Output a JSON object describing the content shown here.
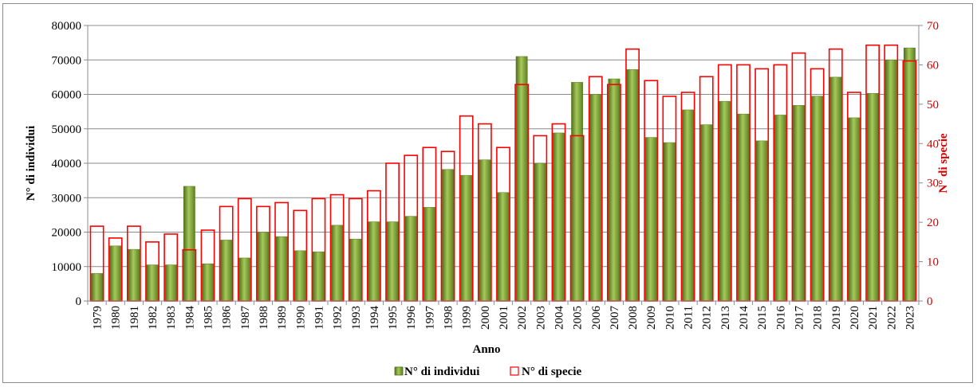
{
  "chart_data": {
    "type": "bar",
    "xlabel": "Anno",
    "ylabel": "N° di individui",
    "y2label": "N° di specie",
    "ylim": [
      0,
      80000
    ],
    "y2lim": [
      0,
      70
    ],
    "yticks": [
      "0",
      "10000",
      "20000",
      "30000",
      "40000",
      "50000",
      "60000",
      "70000",
      "80000"
    ],
    "y2ticks": [
      "0",
      "10",
      "20",
      "30",
      "40",
      "50",
      "60",
      "70"
    ],
    "grid": true,
    "legend_position": "bottom",
    "categories": [
      "1979",
      "1980",
      "1981",
      "1982",
      "1983",
      "1984",
      "1985",
      "1986",
      "1987",
      "1988",
      "1989",
      "1990",
      "1991",
      "1992",
      "1993",
      "1994",
      "1995",
      "1996",
      "1997",
      "1998",
      "1999",
      "2000",
      "2001",
      "2002",
      "2003",
      "2004",
      "2005",
      "2006",
      "2007",
      "2008",
      "2009",
      "2010",
      "2011",
      "2012",
      "2013",
      "2014",
      "2015",
      "2016",
      "2017",
      "2018",
      "2019",
      "2020",
      "2021",
      "2022",
      "2023"
    ],
    "series": [
      {
        "name": "N° di individui",
        "axis": "left",
        "style": "green-filled-bar",
        "color": "#7ea23a",
        "values": [
          8000,
          16000,
          15000,
          10500,
          10500,
          33300,
          10800,
          17700,
          12500,
          20000,
          18700,
          14600,
          14300,
          22000,
          18000,
          23000,
          23000,
          24600,
          27200,
          38200,
          36500,
          41000,
          31500,
          71000,
          40000,
          48800,
          63500,
          60000,
          64500,
          67200,
          47500,
          46000,
          55500,
          51200,
          58000,
          54300,
          46500,
          54000,
          56800,
          59500,
          65000,
          53200,
          60300,
          70000,
          73500
        ]
      },
      {
        "name": "N° di specie",
        "axis": "right",
        "style": "red-outline-bar",
        "color": "#ff0000",
        "values": [
          19,
          16,
          19,
          15,
          17,
          13,
          18,
          24,
          26,
          24,
          25,
          23,
          26,
          27,
          26,
          28,
          35,
          37,
          39,
          38,
          47,
          45,
          39,
          55,
          42,
          45,
          42,
          57,
          55,
          64,
          56,
          52,
          53,
          57,
          60,
          60,
          59,
          60,
          63,
          59,
          64,
          53,
          65,
          65,
          61
        ]
      }
    ]
  }
}
